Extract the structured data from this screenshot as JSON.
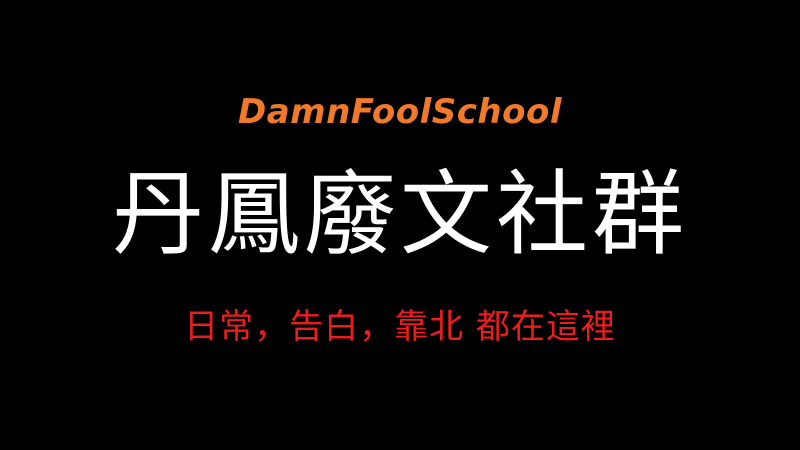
{
  "brand": {
    "text": "DamnFoolSchool",
    "color": "#f07a2a"
  },
  "title": {
    "text": "丹鳳廢文社群",
    "color": "#ffffff"
  },
  "tagline": {
    "text": "日常，告白，靠北 都在這裡",
    "color": "#ee1c1c"
  },
  "background": "#000000"
}
